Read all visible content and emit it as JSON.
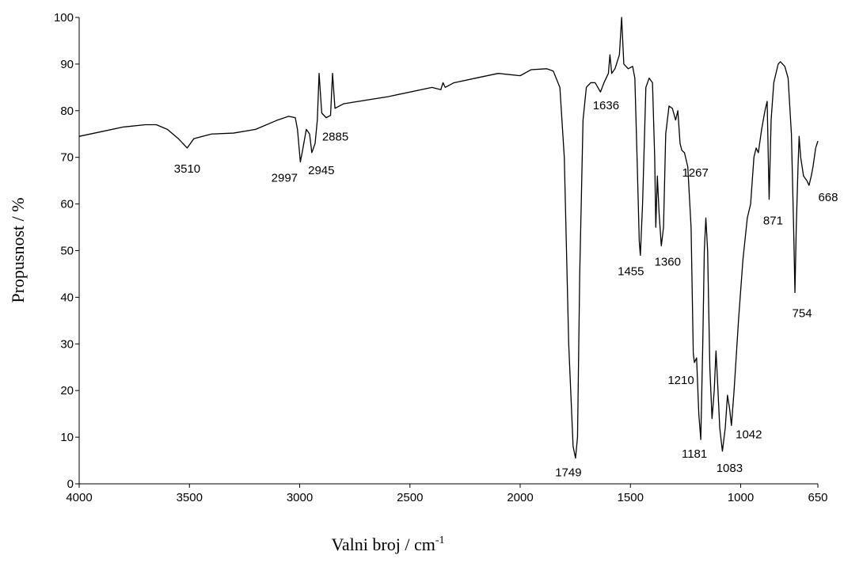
{
  "chart_data": {
    "type": "line",
    "xlabel": "Valni broj / cm",
    "xlabel_sup": "-1",
    "ylabel": "Propusnost / %",
    "xlim": [
      4000,
      650
    ],
    "ylim": [
      0,
      100
    ],
    "xticks": [
      4000,
      3500,
      3000,
      2500,
      2000,
      1500,
      1000,
      650
    ],
    "yticks": [
      0,
      10,
      20,
      30,
      40,
      50,
      60,
      70,
      80,
      90,
      100
    ],
    "color": "#000000",
    "x": [
      4000,
      3900,
      3800,
      3700,
      3650,
      3600,
      3550,
      3510,
      3480,
      3400,
      3300,
      3200,
      3100,
      3050,
      3020,
      3010,
      2997,
      2985,
      2970,
      2955,
      2945,
      2930,
      2920,
      2912,
      2900,
      2880,
      2860,
      2851,
      2840,
      2800,
      2600,
      2400,
      2360,
      2350,
      2340,
      2300,
      2200,
      2100,
      2000,
      1950,
      1880,
      1850,
      1820,
      1800,
      1780,
      1760,
      1749,
      1740,
      1730,
      1715,
      1700,
      1680,
      1660,
      1636,
      1620,
      1600,
      1593,
      1585,
      1570,
      1550,
      1540,
      1530,
      1510,
      1490,
      1480,
      1470,
      1460,
      1455,
      1445,
      1430,
      1415,
      1400,
      1390,
      1385,
      1378,
      1370,
      1360,
      1350,
      1340,
      1325,
      1310,
      1295,
      1285,
      1275,
      1267,
      1255,
      1240,
      1225,
      1215,
      1210,
      1200,
      1190,
      1181,
      1172,
      1165,
      1158,
      1150,
      1140,
      1130,
      1120,
      1112,
      1105,
      1095,
      1083,
      1070,
      1060,
      1050,
      1042,
      1030,
      1010,
      990,
      970,
      955,
      940,
      930,
      920,
      905,
      890,
      880,
      871,
      862,
      850,
      830,
      820,
      800,
      785,
      770,
      760,
      754,
      748,
      740,
      735,
      728,
      715,
      700,
      690,
      680,
      672,
      660,
      650
    ],
    "values": [
      74.5,
      75.5,
      76.5,
      77,
      77,
      76,
      74,
      72,
      74,
      75,
      75.2,
      76,
      78,
      78.8,
      78.5,
      76,
      69,
      72,
      76,
      75,
      71,
      73,
      78,
      88,
      79.5,
      78.5,
      79,
      88,
      80.5,
      81.5,
      83,
      85,
      84.5,
      86,
      85,
      86,
      87,
      88,
      87.5,
      88.8,
      89,
      88.5,
      85,
      70,
      30,
      8,
      5.5,
      10,
      45,
      78,
      85,
      86,
      86,
      84,
      86,
      88,
      92,
      88,
      89,
      92,
      100,
      90,
      89,
      89.5,
      87,
      70,
      52,
      49,
      60,
      85,
      87,
      86,
      70,
      55,
      66,
      58,
      51,
      55,
      75,
      81,
      80.5,
      78,
      80,
      73,
      71.5,
      71,
      68,
      55,
      28,
      26,
      27,
      15,
      9.5,
      30,
      50,
      57,
      50,
      25,
      14,
      20,
      28.5,
      22,
      12,
      7,
      12,
      19,
      16,
      12.5,
      20,
      35,
      48,
      57,
      60,
      70,
      72,
      71,
      76,
      80,
      82,
      61,
      78,
      86,
      90,
      90.5,
      89.5,
      87,
      75,
      55,
      41,
      55,
      68,
      74.5,
      70,
      66,
      65,
      64,
      66,
      68,
      72,
      73.5
    ],
    "annotations": [
      {
        "label": "3510",
        "x": 3510,
        "y": 72
      },
      {
        "label": "2997",
        "x": 2997,
        "y": 69
      },
      {
        "label": "2945",
        "x": 2945,
        "y": 71
      },
      {
        "label": "2885",
        "x": 2885,
        "y": 78.5
      },
      {
        "label": "1749",
        "x": 1749,
        "y": 5.5
      },
      {
        "label": "1636",
        "x": 1636,
        "y": 84
      },
      {
        "label": "1455",
        "x": 1455,
        "y": 49
      },
      {
        "label": "1360",
        "x": 1360,
        "y": 51
      },
      {
        "label": "1267",
        "x": 1267,
        "y": 71.5
      },
      {
        "label": "1210",
        "x": 1210,
        "y": 26
      },
      {
        "label": "1181",
        "x": 1181,
        "y": 9.5
      },
      {
        "label": "1083",
        "x": 1083,
        "y": 7
      },
      {
        "label": "1042",
        "x": 1042,
        "y": 12.5
      },
      {
        "label": "871",
        "x": 871,
        "y": 61
      },
      {
        "label": "754",
        "x": 754,
        "y": 41
      },
      {
        "label": "668",
        "x": 668,
        "y": 65
      }
    ]
  }
}
